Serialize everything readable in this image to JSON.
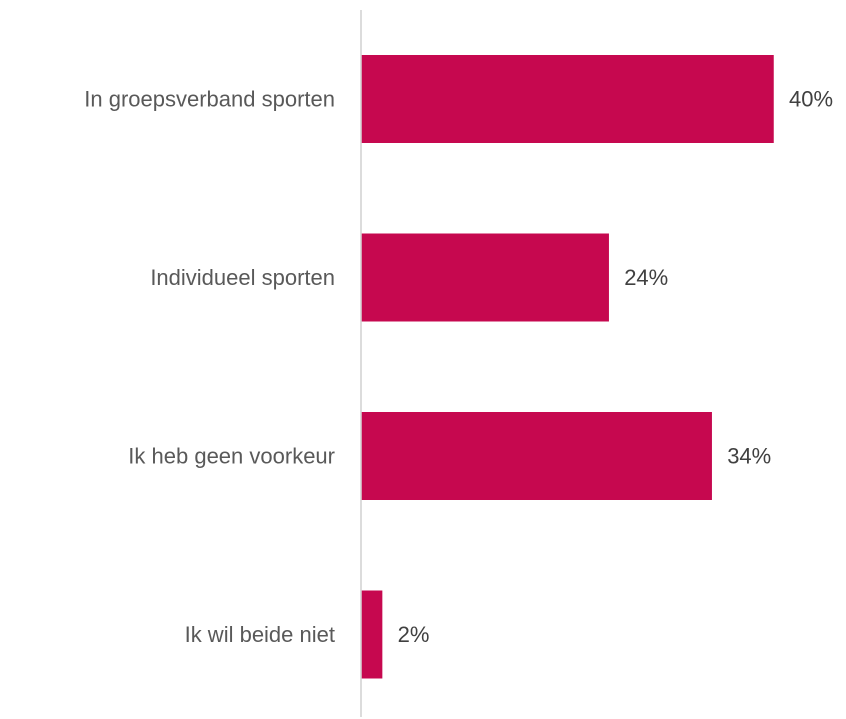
{
  "chart_data": {
    "type": "bar",
    "orientation": "horizontal",
    "categories": [
      "In groepsverband sporten",
      "Individueel sporten",
      "Ik heb geen voorkeur",
      "Ik wil beide niet"
    ],
    "values": [
      40,
      24,
      34,
      2
    ],
    "data_labels": [
      "40%",
      "24%",
      "34%",
      "2%"
    ],
    "unit": "%",
    "title": "",
    "xlabel": "",
    "ylabel": "",
    "xlim": [
      0,
      40
    ],
    "grid": false,
    "legend": "none",
    "colors": {
      "bar": "#C6084F",
      "axis": "#D0D0D0"
    }
  }
}
